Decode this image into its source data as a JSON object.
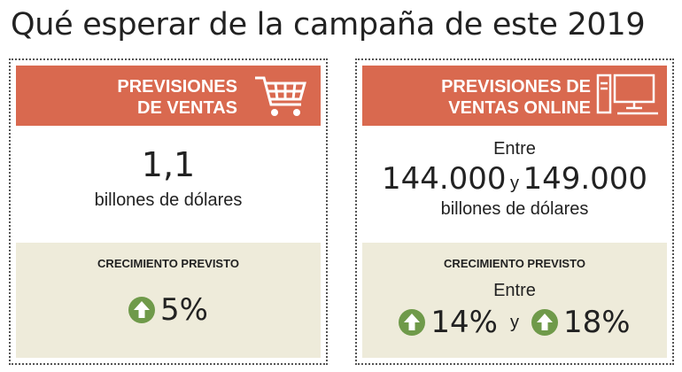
{
  "title": "Qué esperar de la campaña de este 2019",
  "sales": {
    "header_line1": "PREVISIONES",
    "header_line2": "DE VENTAS",
    "icon": "shopping-cart-icon",
    "value": "1,1",
    "unit": "billones de dólares",
    "growth_title": "CRECIMIENTO PREVISTO",
    "growth_value": "5%",
    "growth_icon": "arrow-up-circle-icon"
  },
  "online": {
    "header_line1": "PREVISIONES DE",
    "header_line2": "VENTAS ONLINE",
    "icon": "desktop-computer-icon",
    "range_prefix": "Entre",
    "range_low": "144.000",
    "range_connector": "y",
    "range_high": "149.000",
    "unit": "billones de dólares",
    "growth_title": "CRECIMIENTO PREVISTO",
    "growth_prefix": "Entre",
    "growth_low": "14%",
    "growth_connector": "y",
    "growth_high": "18%",
    "growth_icon": "arrow-up-circle-icon"
  },
  "colors": {
    "header_bg": "#d9694f",
    "growth_bg": "#eeebda",
    "arrow_green": "#6f9a4a"
  }
}
